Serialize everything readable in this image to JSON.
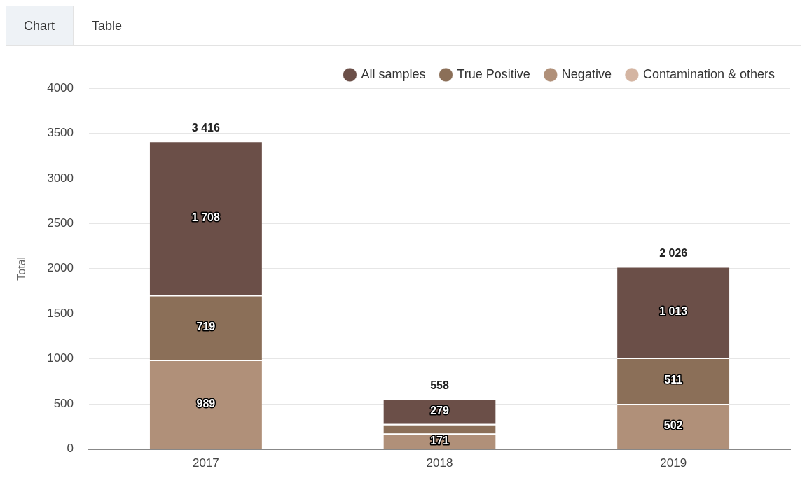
{
  "chart_data": {
    "type": "bar",
    "stacked": true,
    "ylabel": "Total",
    "categories": [
      "2017",
      "2018",
      "2019"
    ],
    "series": [
      {
        "name": "Contamination & others",
        "color": "#d4b5a2",
        "values": [
          null,
          null,
          null
        ]
      },
      {
        "name": "Negative",
        "color": "#b09079",
        "values": [
          989,
          171,
          502
        ],
        "value_labels": [
          "989",
          "171",
          "502"
        ]
      },
      {
        "name": "True Positive",
        "color": "#8b6f58",
        "values": [
          719,
          108,
          511
        ],
        "value_labels": [
          "719",
          null,
          "511"
        ]
      },
      {
        "name": "All samples",
        "color": "#6b4f48",
        "values": [
          1708,
          279,
          1013
        ],
        "value_labels": [
          "1 708",
          "279",
          "1 013"
        ]
      }
    ],
    "totals": [
      "3 416",
      "558",
      "2 026"
    ],
    "ylim": [
      0,
      4000
    ],
    "yticks": [
      0,
      500,
      1000,
      1500,
      2000,
      2500,
      3000,
      3500,
      4000
    ],
    "grid": "y",
    "legend": "top right",
    "annotations": [
      "Chart",
      "Table"
    ]
  }
}
